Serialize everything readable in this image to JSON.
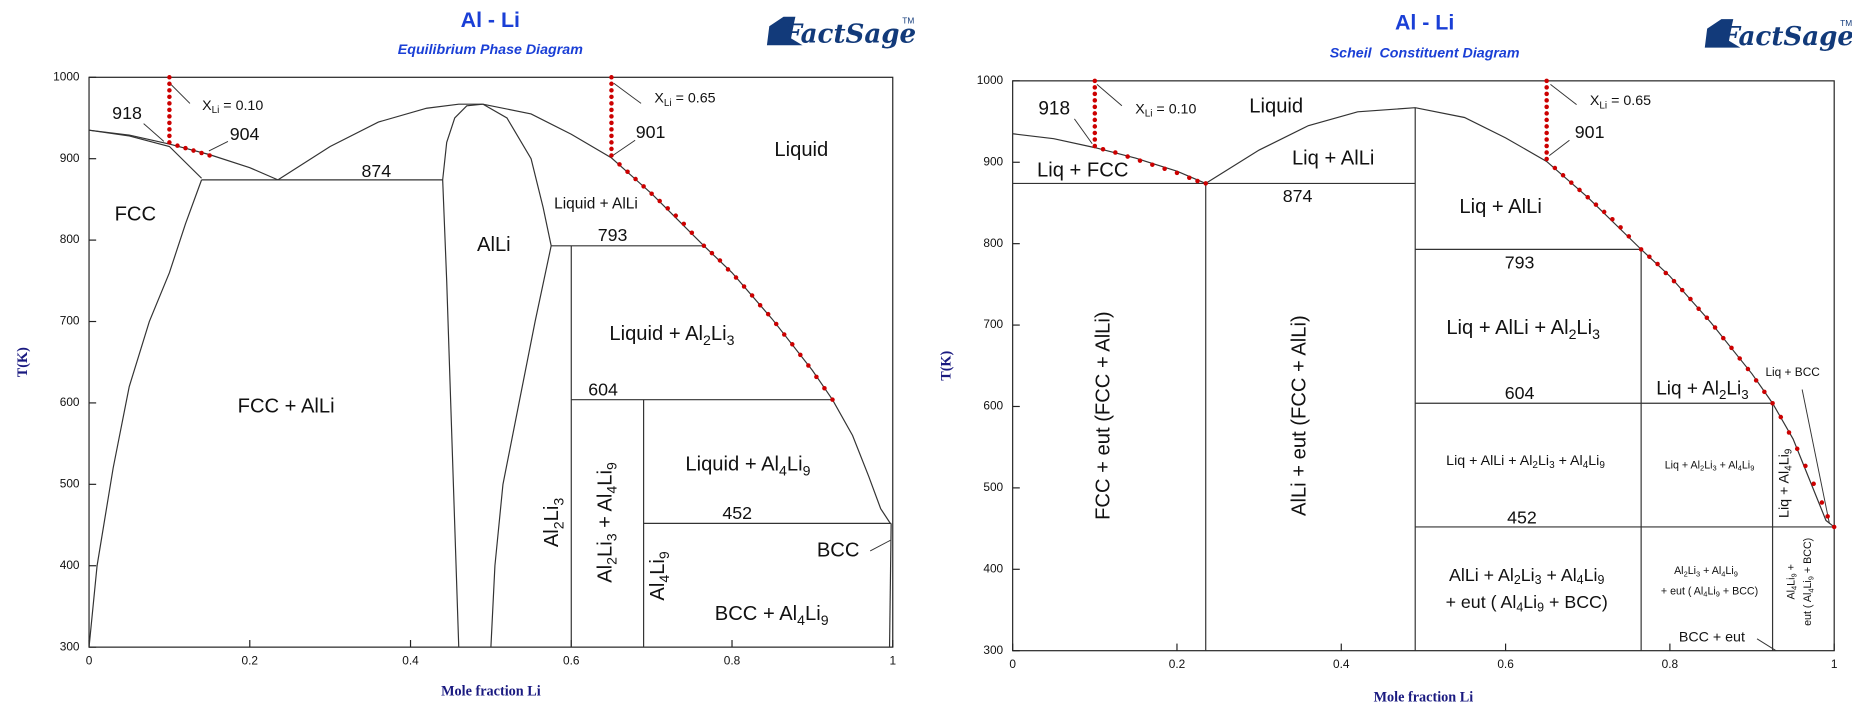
{
  "chart_data": [
    {
      "type": "phase-diagram",
      "title": "Al - Li",
      "subtitle": "Equilibrium Phase Diagram",
      "logo": "FactSage",
      "logo_mark": "TM",
      "xlabel": "Mole fraction Li",
      "ylabel": "T(K)",
      "xlim": [
        0,
        1
      ],
      "ylim": [
        300,
        1000
      ],
      "xticks": [
        0,
        0.2,
        0.4,
        0.6,
        0.8,
        1
      ],
      "yticks": [
        300,
        400,
        500,
        600,
        700,
        800,
        900,
        1000
      ],
      "line_color": "#333333",
      "boundaries": [
        {
          "x": [
            0,
            0.05,
            0.1,
            0.15,
            0.2,
            0.235
          ],
          "y": [
            935,
            929,
            918,
            905,
            889,
            874
          ]
        },
        {
          "x": [
            0,
            0.05,
            0.1,
            0.14
          ],
          "y": [
            935,
            928,
            915,
            876
          ]
        },
        {
          "x": [
            0.14,
            0.12,
            0.1,
            0.075,
            0.05,
            0.03,
            0.01,
            0
          ],
          "y": [
            874,
            820,
            760,
            700,
            620,
            520,
            400,
            300
          ]
        },
        {
          "x": [
            0.235,
            0.3,
            0.36,
            0.42,
            0.46,
            0.49
          ],
          "y": [
            874,
            915,
            945,
            962,
            967,
            967
          ]
        },
        {
          "x": [
            0.49,
            0.55,
            0.6,
            0.65,
            0.7,
            0.765,
            0.8,
            0.85,
            0.9,
            0.925,
            0.95,
            0.97,
            0.985,
            0.997
          ],
          "y": [
            967,
            955,
            930,
            901,
            857,
            793,
            760,
            703,
            640,
            604,
            560,
            510,
            470,
            452
          ]
        },
        {
          "x": [
            0.46,
            0.455,
            0.45,
            0.445,
            0.44,
            0.445,
            0.455,
            0.47,
            0.49
          ],
          "y": [
            300,
            450,
            600,
            750,
            874,
            920,
            950,
            965,
            967
          ]
        },
        {
          "x": [
            0.49,
            0.52,
            0.55,
            0.565,
            0.575,
            0.555,
            0.535,
            0.515,
            0.505,
            0.5
          ],
          "y": [
            967,
            950,
            900,
            840,
            793,
            700,
            600,
            500,
            400,
            300
          ]
        },
        {
          "x": [
            0.14,
            0.44
          ],
          "y": [
            874,
            874
          ]
        },
        {
          "x": [
            0.575,
            0.765
          ],
          "y": [
            793,
            793
          ]
        },
        {
          "x": [
            0.6,
            0.6
          ],
          "y": [
            793,
            300
          ]
        },
        {
          "x": [
            0.6,
            0.925
          ],
          "y": [
            604,
            604
          ]
        },
        {
          "x": [
            0.69,
            0.69
          ],
          "y": [
            604,
            300
          ]
        },
        {
          "x": [
            0.69,
            0.998
          ],
          "y": [
            452,
            452
          ]
        },
        {
          "x": [
            0.996,
            0.998
          ],
          "y": [
            300,
            452
          ]
        }
      ],
      "cooling_paths": [
        {
          "color": "#cc0000",
          "x": [
            0.1,
            0.1,
            0.1,
            0.1,
            0.1,
            0.1,
            0.1,
            0.1,
            0.1,
            0.1,
            0.1,
            0.11,
            0.12,
            0.13,
            0.14,
            0.15
          ],
          "y": [
            1000,
            992,
            984,
            976,
            968,
            960,
            952,
            944,
            936,
            928,
            920,
            916,
            913,
            910,
            907,
            904
          ]
        },
        {
          "color": "#cc0000",
          "x": [
            0.65,
            0.65,
            0.65,
            0.65,
            0.65,
            0.65,
            0.65,
            0.65,
            0.65,
            0.65,
            0.65,
            0.65,
            0.65,
            0.66,
            0.67,
            0.68,
            0.69,
            0.7,
            0.71,
            0.72,
            0.73,
            0.74,
            0.75,
            0.765,
            0.775,
            0.785,
            0.795,
            0.805,
            0.815,
            0.825,
            0.835,
            0.845,
            0.855,
            0.865,
            0.875,
            0.885,
            0.895,
            0.905,
            0.915,
            0.925
          ],
          "y": [
            1000,
            992,
            984,
            976,
            968,
            960,
            952,
            944,
            936,
            928,
            920,
            912,
            904,
            893,
            884,
            875,
            866,
            857,
            848,
            839,
            830,
            820,
            809,
            793,
            784,
            775,
            764,
            754,
            743,
            732,
            720,
            709,
            697,
            684,
            672,
            659,
            646,
            632,
            618,
            604
          ]
        }
      ],
      "labels": [
        "918",
        "904",
        "874",
        "793",
        "604",
        "452",
        "901",
        "XLi = 0.10",
        "XLi = 0.65",
        "Liquid",
        "FCC",
        "AlLi",
        "Liquid + AlLi",
        "Liquid + Al2Li3",
        "FCC + AlLi",
        "Liquid + Al4Li9",
        "BCC",
        "BCC + Al4Li9",
        "Al2Li3",
        "Al2Li3 + Al4Li9",
        "Al4Li9"
      ]
    },
    {
      "type": "phase-diagram",
      "title": "Al - Li",
      "subtitle": "Scheil  Constituent Diagram",
      "logo": "FactSage",
      "logo_mark": "TM",
      "xlabel": "Mole fraction Li",
      "ylabel": "T(K)",
      "xlim": [
        0,
        1
      ],
      "ylim": [
        300,
        1000
      ],
      "xticks": [
        0,
        0.2,
        0.4,
        0.6,
        0.8,
        1
      ],
      "yticks": [
        300,
        400,
        500,
        600,
        700,
        800,
        900,
        1000
      ],
      "line_color": "#333333",
      "boundaries": [
        {
          "x": [
            0,
            0.05,
            0.1,
            0.15,
            0.2,
            0.235
          ],
          "y": [
            935,
            929,
            918,
            905,
            889,
            874
          ]
        },
        {
          "x": [
            0.235,
            0.3,
            0.36,
            0.42,
            0.49,
            0.55,
            0.6,
            0.65,
            0.7,
            0.765,
            0.8,
            0.85,
            0.9,
            0.925,
            0.95,
            0.97,
            0.99,
            1
          ],
          "y": [
            874,
            915,
            945,
            962,
            967,
            955,
            930,
            901,
            857,
            793,
            760,
            703,
            640,
            604,
            560,
            510,
            460,
            452
          ]
        },
        {
          "x": [
            0,
            0.49
          ],
          "y": [
            874,
            874
          ]
        },
        {
          "x": [
            0.235,
            0.235
          ],
          "y": [
            874,
            300
          ]
        },
        {
          "x": [
            0.49,
            0.49
          ],
          "y": [
            967,
            300
          ]
        },
        {
          "x": [
            0.49,
            0.765
          ],
          "y": [
            793,
            793
          ]
        },
        {
          "x": [
            0.765,
            0.765
          ],
          "y": [
            793,
            300
          ]
        },
        {
          "x": [
            0.49,
            0.925
          ],
          "y": [
            604,
            604
          ]
        },
        {
          "x": [
            0.925,
            0.925
          ],
          "y": [
            604,
            300
          ]
        },
        {
          "x": [
            0.49,
            1
          ],
          "y": [
            452,
            452
          ]
        }
      ],
      "cooling_paths": [
        {
          "color": "#cc0000",
          "x": [
            0.1,
            0.1,
            0.1,
            0.1,
            0.1,
            0.1,
            0.1,
            0.1,
            0.1,
            0.1,
            0.1,
            0.11,
            0.125,
            0.14,
            0.155,
            0.17,
            0.185,
            0.2,
            0.215,
            0.225,
            0.235
          ],
          "y": [
            1000,
            992,
            984,
            976,
            968,
            960,
            952,
            944,
            936,
            928,
            920,
            916,
            912,
            907,
            902,
            897,
            892,
            887,
            881,
            877,
            874
          ]
        },
        {
          "color": "#cc0000",
          "x": [
            0.65,
            0.65,
            0.65,
            0.65,
            0.65,
            0.65,
            0.65,
            0.65,
            0.65,
            0.65,
            0.65,
            0.65,
            0.65,
            0.66,
            0.67,
            0.68,
            0.69,
            0.7,
            0.71,
            0.72,
            0.73,
            0.74,
            0.75,
            0.765,
            0.775,
            0.785,
            0.795,
            0.805,
            0.815,
            0.825,
            0.835,
            0.845,
            0.855,
            0.865,
            0.875,
            0.885,
            0.895,
            0.905,
            0.915,
            0.925,
            0.935,
            0.945,
            0.955,
            0.965,
            0.975,
            0.985,
            0.992,
            1
          ],
          "y": [
            1000,
            992,
            984,
            976,
            968,
            960,
            952,
            944,
            936,
            928,
            920,
            912,
            904,
            893,
            884,
            875,
            866,
            857,
            848,
            839,
            830,
            820,
            809,
            793,
            784,
            775,
            764,
            754,
            743,
            732,
            720,
            709,
            697,
            684,
            672,
            659,
            646,
            632,
            618,
            604,
            587,
            568,
            548,
            527,
            505,
            482,
            465,
            452
          ]
        }
      ],
      "labels": [
        "918",
        "XLi = 0.10",
        "Liquid",
        "XLi = 0.65",
        "901",
        "Liq + AlLi",
        "Liq + FCC",
        "874",
        "Liq + AlLi",
        "793",
        "Liq + AlLi + Al2Li3",
        "604",
        "Liq + Al2Li3",
        "Liq + BCC",
        "Liq + AlLi + Al2Li3 + Al4Li9",
        "Liq + Al2Li3 + Al4Li9",
        "452",
        "AlLi + Al2Li3 + Al4Li9",
        "+ eut ( Al4Li9 + BCC)",
        "Al2Li3 + Al4Li9",
        "+ eut ( Al4Li9 + BCC)",
        "BCC + eut",
        "FCC + eut (FCC + AlLi)",
        "AlLi + eut (FCC + AlLi)",
        "Liq + Al4Li9",
        "Al4Li9 +",
        "eut ( Al4Li9 + BCC)"
      ]
    }
  ]
}
